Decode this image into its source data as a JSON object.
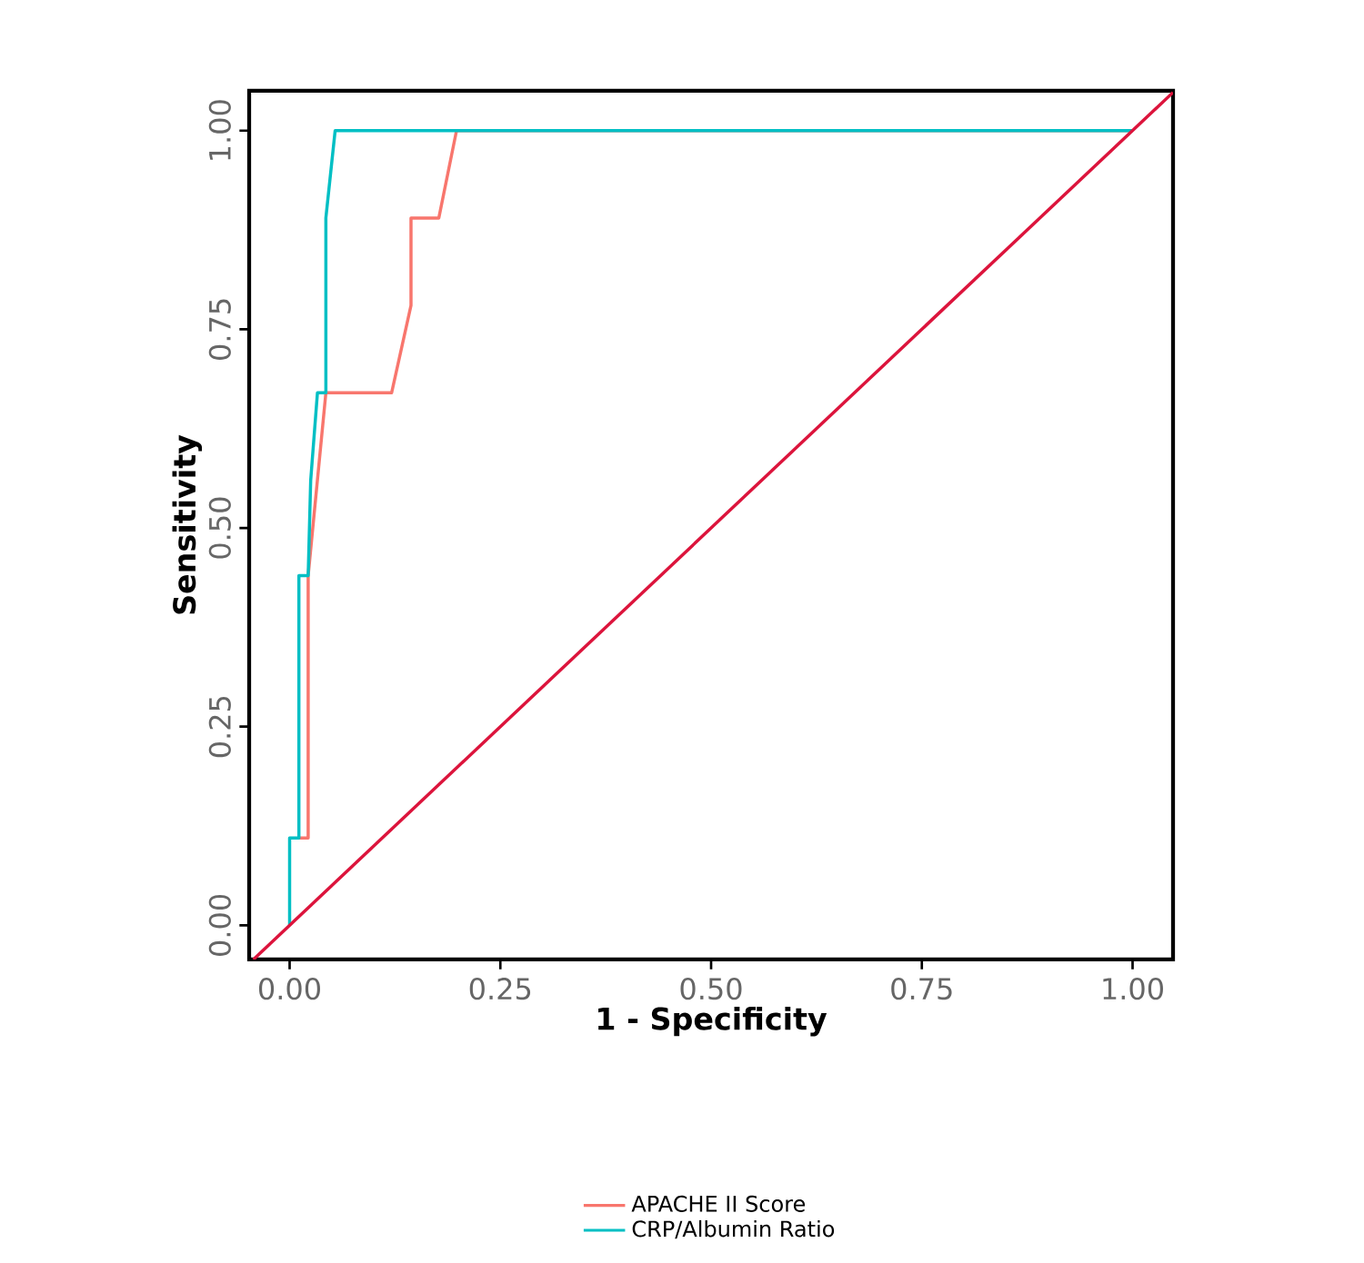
{
  "chart_data": {
    "type": "line",
    "xlabel": "1 - Specificity",
    "ylabel": "Sensitivity",
    "xlim": [
      -0.048,
      1.048
    ],
    "ylim": [
      -0.043,
      1.05
    ],
    "xticks": [
      {
        "value": 0,
        "label": "0.00"
      },
      {
        "value": 0.25,
        "label": "0.25"
      },
      {
        "value": 0.5,
        "label": "0.50"
      },
      {
        "value": 0.75,
        "label": "0.75"
      },
      {
        "value": 1,
        "label": "1.00"
      }
    ],
    "yticks": [
      {
        "value": 0,
        "label": "0.00"
      },
      {
        "value": 0.25,
        "label": "0.25"
      },
      {
        "value": 0.5,
        "label": "0.50"
      },
      {
        "value": 0.75,
        "label": "0.75"
      },
      {
        "value": 1,
        "label": "1.00"
      }
    ],
    "series": [
      {
        "name": "APACHE II Score",
        "color": "#f8766d",
        "x": [
          0.011,
          0.022,
          0.022,
          0.043,
          0.121,
          0.144,
          0.144,
          0.177,
          0.198,
          1
        ],
        "values": [
          0.11,
          0.11,
          0.44,
          0.67,
          0.67,
          0.78,
          0.89,
          0.89,
          1,
          1
        ]
      },
      {
        "name": "CRP/Albumin Ratio",
        "color": "#00bfc4",
        "x": [
          0,
          0,
          0.011,
          0.011,
          0.022,
          0.025,
          0.033,
          0.043,
          0.043,
          0.054,
          1
        ],
        "values": [
          0,
          0.11,
          0.11,
          0.44,
          0.44,
          0.56,
          0.67,
          0.67,
          0.89,
          1,
          1
        ]
      },
      {
        "color": "#dc143c",
        "x": [
          -0.043,
          1.048
        ],
        "values": [
          -0.043,
          1.048
        ]
      }
    ],
    "grid": false,
    "legend": "bottom",
    "marker": "none",
    "line_style": "solid"
  }
}
